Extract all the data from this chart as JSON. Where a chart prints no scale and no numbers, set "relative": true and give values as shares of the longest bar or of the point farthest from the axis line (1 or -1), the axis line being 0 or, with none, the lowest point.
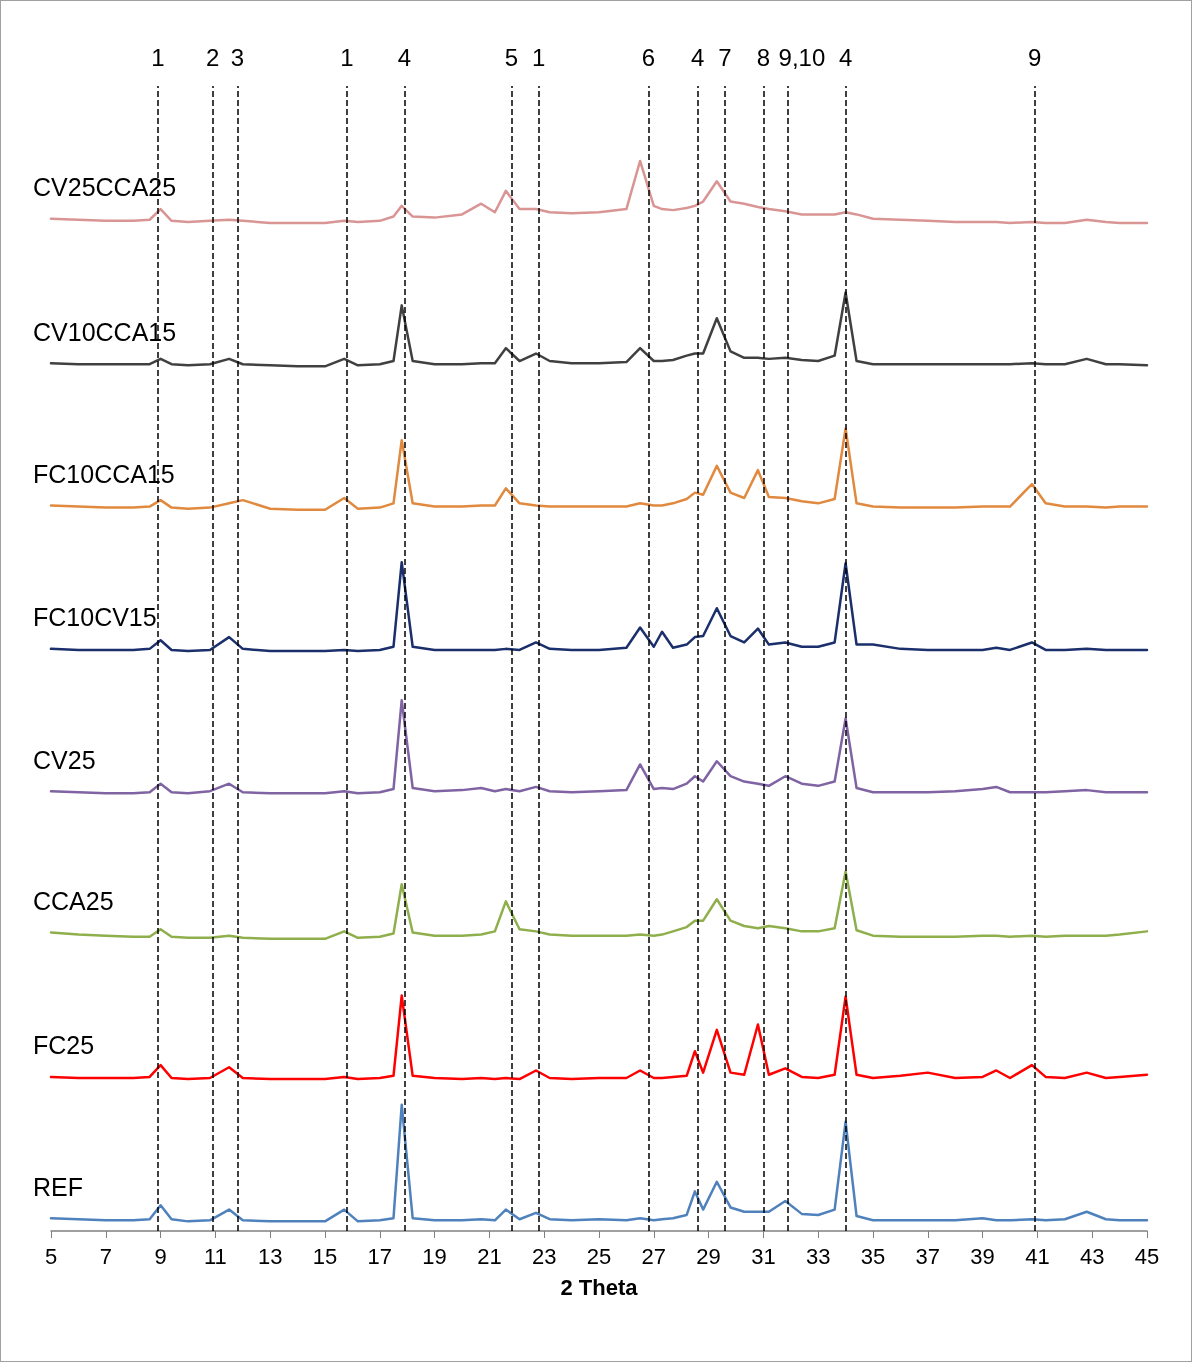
{
  "chart_data": {
    "type": "line",
    "relative": true,
    "xlabel": "2 Theta",
    "xlim": [
      5,
      45
    ],
    "xticks": [
      5,
      7,
      9,
      11,
      13,
      15,
      17,
      19,
      21,
      23,
      25,
      27,
      29,
      31,
      33,
      35,
      37,
      39,
      41,
      43,
      45
    ],
    "grid": false,
    "legend": false,
    "marker": "none",
    "line_style": "solid",
    "tick_labels": "x",
    "x": [
      5,
      6,
      7,
      8,
      8.6,
      9,
      9.4,
      10,
      10.8,
      11.5,
      12,
      13,
      14,
      15,
      15.7,
      16.2,
      17,
      17.5,
      17.8,
      18.2,
      19,
      20,
      20.7,
      21.2,
      21.6,
      22.1,
      22.7,
      23.2,
      24,
      25,
      26,
      26.5,
      27,
      27.3,
      27.7,
      28.2,
      28.5,
      28.8,
      29.3,
      29.8,
      30.3,
      30.8,
      31.2,
      31.8,
      32.4,
      33,
      33.6,
      34,
      34.4,
      35,
      36,
      37,
      38,
      39,
      39.5,
      40,
      40.8,
      41.3,
      42,
      42.8,
      43.5,
      44,
      45
    ],
    "series": [
      {
        "name": "REF",
        "color": "#4f81bd",
        "values": [
          0.012,
          0.011,
          0.01,
          0.01,
          0.011,
          0.024,
          0.011,
          0.009,
          0.01,
          0.02,
          0.01,
          0.009,
          0.009,
          0.009,
          0.02,
          0.009,
          0.01,
          0.012,
          0.118,
          0.012,
          0.01,
          0.01,
          0.011,
          0.01,
          0.02,
          0.011,
          0.017,
          0.011,
          0.01,
          0.011,
          0.01,
          0.012,
          0.01,
          0.011,
          0.012,
          0.015,
          0.037,
          0.02,
          0.046,
          0.022,
          0.018,
          0.018,
          0.018,
          0.028,
          0.016,
          0.015,
          0.02,
          0.102,
          0.014,
          0.01,
          0.01,
          0.01,
          0.01,
          0.012,
          0.01,
          0.01,
          0.011,
          0.01,
          0.011,
          0.018,
          0.011,
          0.01,
          0.01
        ]
      },
      {
        "name": "FC25",
        "color": "#ff0000",
        "values": [
          0.144,
          0.143,
          0.143,
          0.143,
          0.144,
          0.155,
          0.143,
          0.142,
          0.143,
          0.153,
          0.143,
          0.142,
          0.142,
          0.142,
          0.144,
          0.142,
          0.143,
          0.145,
          0.22,
          0.145,
          0.143,
          0.142,
          0.143,
          0.142,
          0.143,
          0.142,
          0.15,
          0.143,
          0.142,
          0.143,
          0.143,
          0.15,
          0.143,
          0.143,
          0.144,
          0.145,
          0.168,
          0.148,
          0.188,
          0.148,
          0.146,
          0.193,
          0.146,
          0.152,
          0.144,
          0.143,
          0.146,
          0.219,
          0.146,
          0.143,
          0.145,
          0.148,
          0.143,
          0.144,
          0.15,
          0.143,
          0.155,
          0.144,
          0.143,
          0.148,
          0.143,
          0.144,
          0.146
        ]
      },
      {
        "name": "CCA25",
        "color": "#8faf4c",
        "values": [
          0.279,
          0.277,
          0.276,
          0.275,
          0.275,
          0.282,
          0.275,
          0.274,
          0.274,
          0.276,
          0.274,
          0.273,
          0.273,
          0.273,
          0.28,
          0.274,
          0.275,
          0.278,
          0.324,
          0.279,
          0.276,
          0.276,
          0.277,
          0.28,
          0.308,
          0.282,
          0.28,
          0.277,
          0.276,
          0.276,
          0.276,
          0.277,
          0.276,
          0.277,
          0.28,
          0.284,
          0.29,
          0.29,
          0.31,
          0.29,
          0.285,
          0.283,
          0.285,
          0.283,
          0.28,
          0.28,
          0.283,
          0.336,
          0.281,
          0.276,
          0.275,
          0.275,
          0.275,
          0.276,
          0.276,
          0.275,
          0.276,
          0.275,
          0.276,
          0.276,
          0.276,
          0.277,
          0.28
        ]
      },
      {
        "name": "CV25",
        "color": "#7f63a3",
        "values": [
          0.411,
          0.41,
          0.409,
          0.409,
          0.41,
          0.418,
          0.41,
          0.409,
          0.411,
          0.418,
          0.41,
          0.409,
          0.409,
          0.409,
          0.411,
          0.409,
          0.41,
          0.413,
          0.496,
          0.414,
          0.411,
          0.412,
          0.414,
          0.411,
          0.413,
          0.411,
          0.415,
          0.411,
          0.41,
          0.411,
          0.412,
          0.436,
          0.413,
          0.414,
          0.413,
          0.418,
          0.425,
          0.42,
          0.439,
          0.425,
          0.42,
          0.418,
          0.416,
          0.425,
          0.418,
          0.416,
          0.42,
          0.479,
          0.414,
          0.41,
          0.41,
          0.41,
          0.411,
          0.413,
          0.415,
          0.41,
          0.41,
          0.41,
          0.411,
          0.412,
          0.41,
          0.41,
          0.41
        ]
      },
      {
        "name": "FC10CV15",
        "color": "#1a2f6b",
        "values": [
          0.544,
          0.543,
          0.543,
          0.543,
          0.544,
          0.552,
          0.543,
          0.542,
          0.543,
          0.555,
          0.544,
          0.542,
          0.542,
          0.542,
          0.543,
          0.542,
          0.543,
          0.546,
          0.625,
          0.546,
          0.543,
          0.543,
          0.543,
          0.543,
          0.544,
          0.543,
          0.55,
          0.544,
          0.543,
          0.543,
          0.545,
          0.564,
          0.546,
          0.56,
          0.545,
          0.548,
          0.555,
          0.556,
          0.582,
          0.556,
          0.55,
          0.563,
          0.548,
          0.55,
          0.546,
          0.546,
          0.55,
          0.624,
          0.548,
          0.548,
          0.544,
          0.543,
          0.543,
          0.543,
          0.545,
          0.543,
          0.55,
          0.543,
          0.543,
          0.544,
          0.543,
          0.543,
          0.543
        ]
      },
      {
        "name": "FC10CCA15",
        "color": "#e0893f",
        "values": [
          0.678,
          0.677,
          0.676,
          0.676,
          0.677,
          0.683,
          0.676,
          0.675,
          0.676,
          0.68,
          0.683,
          0.675,
          0.674,
          0.674,
          0.685,
          0.675,
          0.676,
          0.68,
          0.739,
          0.68,
          0.677,
          0.677,
          0.678,
          0.678,
          0.694,
          0.68,
          0.678,
          0.677,
          0.677,
          0.677,
          0.677,
          0.68,
          0.678,
          0.678,
          0.68,
          0.684,
          0.69,
          0.688,
          0.715,
          0.69,
          0.685,
          0.711,
          0.686,
          0.685,
          0.682,
          0.68,
          0.684,
          0.75,
          0.68,
          0.677,
          0.676,
          0.676,
          0.676,
          0.677,
          0.677,
          0.677,
          0.698,
          0.68,
          0.677,
          0.677,
          0.676,
          0.677,
          0.677
        ]
      },
      {
        "name": "CV10CCA15",
        "color": "#404040",
        "values": [
          0.811,
          0.81,
          0.81,
          0.81,
          0.81,
          0.815,
          0.81,
          0.809,
          0.81,
          0.815,
          0.81,
          0.809,
          0.808,
          0.808,
          0.815,
          0.809,
          0.81,
          0.813,
          0.865,
          0.813,
          0.81,
          0.81,
          0.811,
          0.811,
          0.825,
          0.813,
          0.82,
          0.813,
          0.811,
          0.811,
          0.812,
          0.825,
          0.813,
          0.813,
          0.814,
          0.818,
          0.82,
          0.82,
          0.853,
          0.822,
          0.816,
          0.816,
          0.815,
          0.816,
          0.814,
          0.813,
          0.818,
          0.877,
          0.813,
          0.81,
          0.81,
          0.81,
          0.81,
          0.81,
          0.81,
          0.81,
          0.811,
          0.81,
          0.81,
          0.815,
          0.81,
          0.81,
          0.809
        ]
      },
      {
        "name": "CV25CCA25",
        "color": "#d99594",
        "values": [
          0.946,
          0.945,
          0.944,
          0.944,
          0.945,
          0.955,
          0.944,
          0.943,
          0.944,
          0.945,
          0.944,
          0.942,
          0.942,
          0.942,
          0.944,
          0.943,
          0.944,
          0.948,
          0.958,
          0.948,
          0.947,
          0.95,
          0.96,
          0.952,
          0.972,
          0.955,
          0.955,
          0.952,
          0.951,
          0.952,
          0.955,
          1.0,
          0.958,
          0.955,
          0.954,
          0.956,
          0.958,
          0.962,
          0.981,
          0.962,
          0.96,
          0.957,
          0.955,
          0.953,
          0.95,
          0.95,
          0.95,
          0.952,
          0.95,
          0.946,
          0.945,
          0.944,
          0.943,
          0.943,
          0.943,
          0.942,
          0.943,
          0.942,
          0.942,
          0.945,
          0.943,
          0.942,
          0.942
        ]
      }
    ],
    "annotations": [
      "1",
      "2",
      "3",
      "1",
      "4",
      "5",
      "1",
      "6",
      "4",
      "7",
      "8",
      "9,10",
      "4",
      "9"
    ],
    "ref_lines": [
      {
        "axis": "x",
        "value": 8.9,
        "line_style": "dashed",
        "color": "#000000"
      },
      {
        "axis": "x",
        "value": 10.9,
        "line_style": "dashed",
        "color": "#000000"
      },
      {
        "axis": "x",
        "value": 11.8,
        "line_style": "dashed",
        "color": "#000000"
      },
      {
        "axis": "x",
        "value": 15.8,
        "line_style": "dashed",
        "color": "#000000"
      },
      {
        "axis": "x",
        "value": 17.9,
        "line_style": "dashed",
        "color": "#000000"
      },
      {
        "axis": "x",
        "value": 21.8,
        "line_style": "dashed",
        "color": "#000000"
      },
      {
        "axis": "x",
        "value": 22.8,
        "line_style": "dashed",
        "color": "#000000"
      },
      {
        "axis": "x",
        "value": 26.8,
        "line_style": "dashed",
        "color": "#000000"
      },
      {
        "axis": "x",
        "value": 28.6,
        "line_style": "dashed",
        "color": "#000000"
      },
      {
        "axis": "x",
        "value": 29.6,
        "line_style": "dashed",
        "color": "#000000"
      },
      {
        "axis": "x",
        "value": 31.0,
        "line_style": "dashed",
        "color": "#000000"
      },
      {
        "axis": "x",
        "value": 31.9,
        "line_style": "dashed",
        "color": "#000000"
      },
      {
        "axis": "x",
        "value": 34.0,
        "line_style": "dashed",
        "color": "#000000"
      },
      {
        "axis": "x",
        "value": 40.9,
        "line_style": "dashed",
        "color": "#000000"
      }
    ]
  }
}
